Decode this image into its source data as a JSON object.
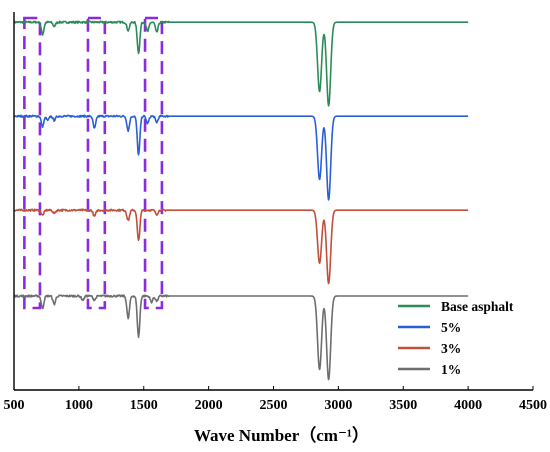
{
  "chart_data": {
    "type": "line",
    "xlabel": "Wave Number（cm⁻¹）",
    "ylabel": "",
    "xlim": [
      500,
      4500
    ],
    "xticks": [
      500,
      1000,
      1500,
      2000,
      2500,
      3000,
      3500,
      4000,
      4500
    ],
    "y_axis_ticks_shown": false,
    "grid": false,
    "legend_position": "bottom-right",
    "series": [
      {
        "name": "Base asphalt",
        "color": "#2e8b57",
        "baseline": 0.0,
        "x_range": [
          500,
          4000
        ],
        "peaks": [
          {
            "x": 720,
            "depth": 0.12
          },
          {
            "x": 810,
            "depth": 0.04
          },
          {
            "x": 1380,
            "depth": 0.08
          },
          {
            "x": 1460,
            "depth": 0.3
          },
          {
            "x": 1530,
            "depth": 0.09
          },
          {
            "x": 1600,
            "depth": 0.1
          },
          {
            "x": 2855,
            "depth": 0.68
          },
          {
            "x": 2925,
            "depth": 0.82
          }
        ]
      },
      {
        "name": "5%",
        "color": "#2b5fd9",
        "baseline": -0.92,
        "x_range": [
          500,
          4000
        ],
        "peaks": [
          {
            "x": 720,
            "depth": 0.1
          },
          {
            "x": 760,
            "depth": 0.04
          },
          {
            "x": 810,
            "depth": 0.04
          },
          {
            "x": 1120,
            "depth": 0.12
          },
          {
            "x": 1380,
            "depth": 0.14
          },
          {
            "x": 1460,
            "depth": 0.38
          },
          {
            "x": 1530,
            "depth": 0.07
          },
          {
            "x": 1600,
            "depth": 0.06
          },
          {
            "x": 2855,
            "depth": 0.62
          },
          {
            "x": 2925,
            "depth": 0.82
          }
        ]
      },
      {
        "name": "3%",
        "color": "#c0503a",
        "baseline": -1.84,
        "x_range": [
          500,
          4000
        ],
        "peaks": [
          {
            "x": 720,
            "depth": 0.05
          },
          {
            "x": 810,
            "depth": 0.03
          },
          {
            "x": 1120,
            "depth": 0.06
          },
          {
            "x": 1380,
            "depth": 0.1
          },
          {
            "x": 1460,
            "depth": 0.3
          },
          {
            "x": 1600,
            "depth": 0.04
          },
          {
            "x": 2855,
            "depth": 0.52
          },
          {
            "x": 2925,
            "depth": 0.72
          }
        ]
      },
      {
        "name": "1%",
        "color": "#6e6e6e",
        "baseline": -2.68,
        "x_range": [
          500,
          4000
        ],
        "peaks": [
          {
            "x": 720,
            "depth": 0.12
          },
          {
            "x": 810,
            "depth": 0.08
          },
          {
            "x": 1030,
            "depth": 0.04
          },
          {
            "x": 1120,
            "depth": 0.04
          },
          {
            "x": 1380,
            "depth": 0.22
          },
          {
            "x": 1460,
            "depth": 0.4
          },
          {
            "x": 1560,
            "depth": 0.06
          },
          {
            "x": 1600,
            "depth": 0.05
          },
          {
            "x": 2855,
            "depth": 0.72
          },
          {
            "x": 2925,
            "depth": 0.82
          }
        ]
      }
    ],
    "ylim": [
      -3.6,
      0.1
    ],
    "highlight_boxes": [
      {
        "x_range": [
          580,
          700
        ],
        "color": "#8a2be2"
      },
      {
        "x_range": [
          1070,
          1200
        ],
        "color": "#8a2be2"
      },
      {
        "x_range": [
          1510,
          1640
        ],
        "color": "#8a2be2"
      }
    ]
  }
}
